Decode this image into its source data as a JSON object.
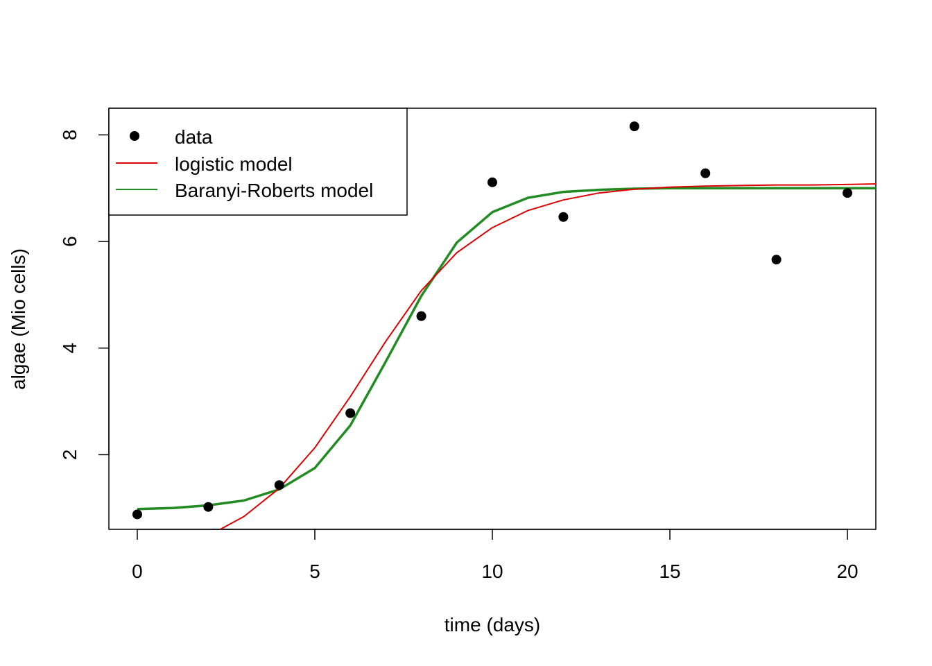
{
  "chart_data": {
    "type": "scatter",
    "xlabel": "time (days)",
    "ylabel": "algae (Mio cells)",
    "xlim": [
      -0.8,
      20.8
    ],
    "ylim": [
      0.6,
      8.5
    ],
    "xticks": [
      0,
      5,
      10,
      15,
      20
    ],
    "yticks": [
      2,
      4,
      6,
      8
    ],
    "grid": false,
    "legend_position": "top-left",
    "series": [
      {
        "name": "data",
        "kind": "points",
        "color": "#000000",
        "x": [
          0,
          2,
          4,
          6,
          8,
          10,
          12,
          14,
          16,
          18,
          20
        ],
        "y": [
          0.88,
          1.02,
          1.43,
          2.78,
          4.6,
          7.11,
          6.46,
          8.16,
          7.28,
          5.66,
          6.91
        ]
      },
      {
        "name": "logistic model",
        "kind": "line",
        "color": "#dd0000",
        "x": [
          2.2,
          3,
          4,
          5,
          6,
          7,
          8,
          9,
          10,
          11,
          12,
          13,
          14,
          15,
          16,
          17,
          18,
          19,
          20,
          20.8
        ],
        "y": [
          0.55,
          0.84,
          1.37,
          2.13,
          3.09,
          4.13,
          5.08,
          5.79,
          6.26,
          6.58,
          6.78,
          6.91,
          6.98,
          7.02,
          7.04,
          7.05,
          7.06,
          7.06,
          7.07,
          7.08
        ]
      },
      {
        "name": "Baranyi-Roberts model",
        "kind": "line",
        "color": "#228b22",
        "x": [
          0,
          1,
          2,
          3,
          4,
          5,
          6,
          7,
          8,
          9,
          10,
          11,
          12,
          13,
          14,
          15,
          16,
          17,
          18,
          19,
          20,
          20.8
        ],
        "y": [
          0.98,
          1.0,
          1.05,
          1.14,
          1.35,
          1.75,
          2.55,
          3.75,
          4.98,
          5.98,
          6.55,
          6.82,
          6.93,
          6.97,
          6.99,
          7.0,
          7.0,
          7.0,
          7.0,
          7.0,
          7.0,
          7.0
        ]
      }
    ]
  }
}
